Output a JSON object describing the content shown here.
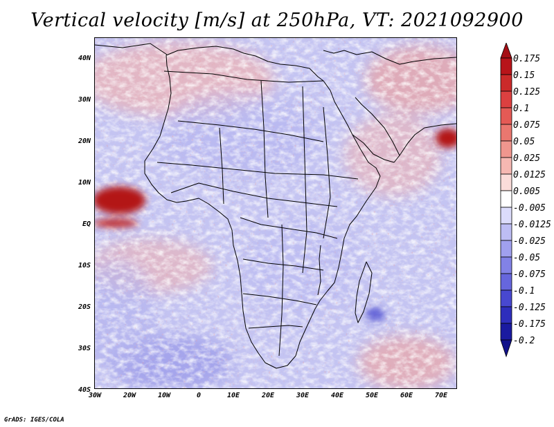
{
  "title": "Vertical velocity [m/s] at 250hPa, VT: 2021092900",
  "footer": "GrADS: IGES/COLA",
  "map": {
    "lat_labels": [
      "40N",
      "30N",
      "20N",
      "10N",
      "EQ",
      "10S",
      "20S",
      "30S",
      "40S"
    ],
    "lon_labels": [
      "30W",
      "20W",
      "10W",
      "0",
      "10E",
      "20E",
      "30E",
      "40E",
      "50E",
      "60E",
      "70E"
    ],
    "lon_range": [
      -30,
      75
    ],
    "lat_range": [
      -40,
      45
    ]
  },
  "colorbar": {
    "labels": [
      "0.175",
      "0.15",
      "0.125",
      "0.1",
      "0.075",
      "0.05",
      "0.025",
      "0.0125",
      "0.005",
      "-0.005",
      "-0.0125",
      "-0.025",
      "-0.05",
      "-0.075",
      "-0.1",
      "-0.125",
      "-0.175",
      "-0.2"
    ],
    "colors": [
      "#a50f15",
      "#b8141a",
      "#cb2a2a",
      "#dc4040",
      "#e45a55",
      "#ea776f",
      "#f0968e",
      "#f6b8b2",
      "#fbdcd9",
      "#ffffff",
      "#dcdcfb",
      "#bdbdf4",
      "#a0a0ee",
      "#8282e6",
      "#6666dd",
      "#4848d0",
      "#2e2ebc",
      "#1a1aa0",
      "#12128a"
    ]
  }
}
